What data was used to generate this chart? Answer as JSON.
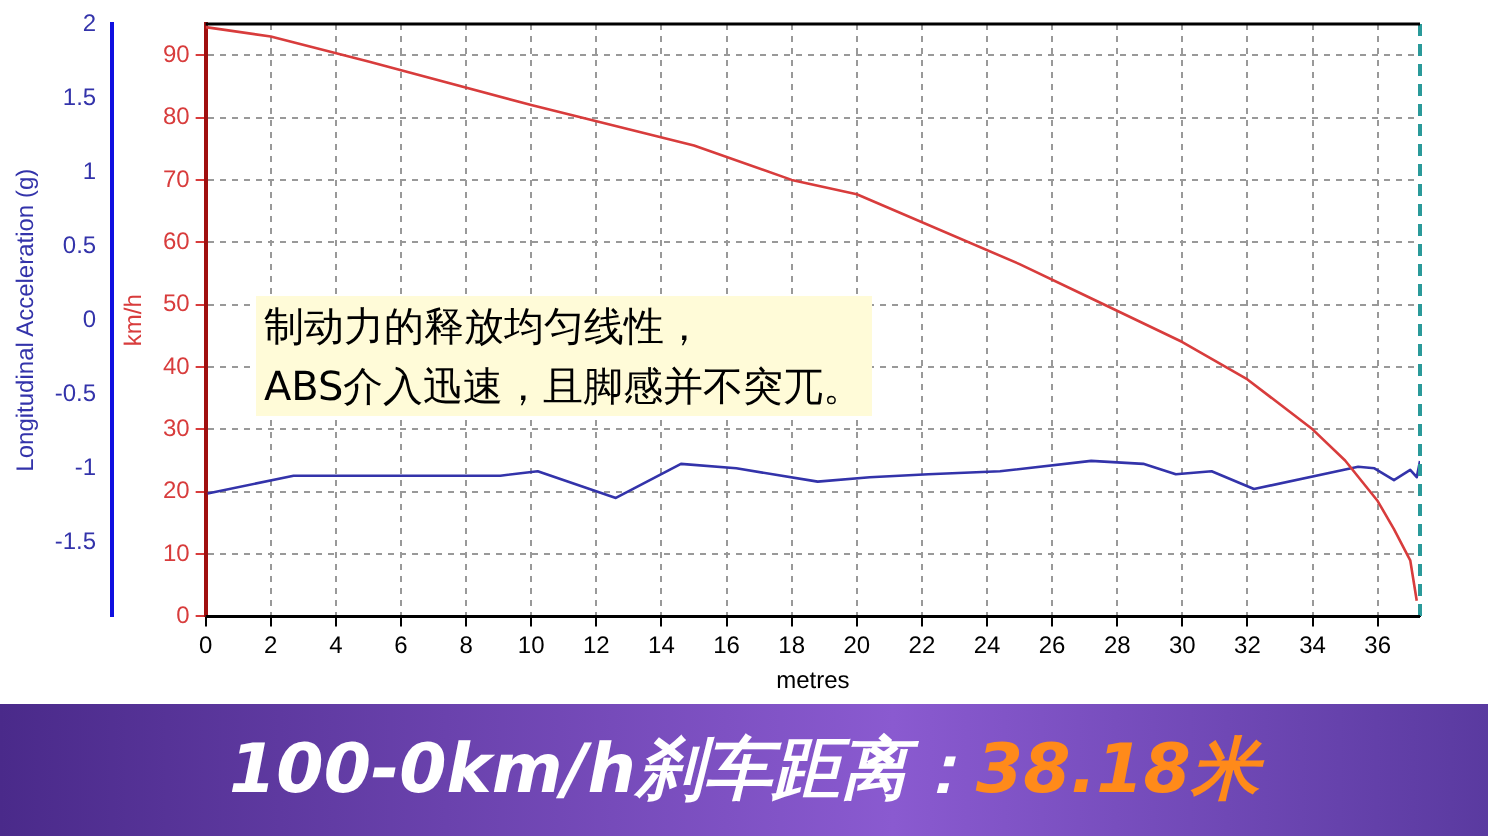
{
  "chart_data": {
    "type": "line",
    "xlabel": "metres",
    "ylabel": "km/h",
    "y2label": "Longitudinal Acceleration (g)",
    "annotations": [
      "制动力的释放均匀线性，\nABS介入迅速，且脚感并不突兀。",
      "100-0km/h刹车距离：",
      "38.18米"
    ],
    "xlim": [
      0,
      37.3
    ],
    "xticks": [
      0,
      2,
      4,
      6,
      8,
      10,
      12,
      14,
      16,
      18,
      20,
      22,
      24,
      26,
      28,
      30,
      32,
      34,
      36
    ],
    "ylim": [
      0,
      95
    ],
    "yticks": [
      0,
      10,
      20,
      30,
      40,
      50,
      60,
      70,
      80,
      90
    ],
    "y2lim": [
      -2,
      2
    ],
    "y2ticks": [
      -1.5,
      -1,
      -0.5,
      0,
      0.5,
      1,
      1.5,
      2
    ],
    "grid": true,
    "marker": "none",
    "line_style": "solid",
    "ref_lines": [
      {
        "axis": "x",
        "value": 37.3,
        "color": "#2a9a9a",
        "line_style": "dashed"
      }
    ],
    "series": [
      {
        "color": "#d83c3c",
        "x": [
          0,
          2,
          5,
          10,
          15,
          18,
          20,
          25,
          27,
          30,
          32,
          34,
          35,
          36,
          36.5,
          37,
          37.2
        ],
        "values": [
          94.5,
          93,
          89,
          82,
          75.5,
          70,
          67.7,
          56.5,
          51.5,
          44,
          38,
          30,
          25,
          18.5,
          14,
          9,
          2.5
        ]
      },
      {
        "color": "#3333aa",
        "axis": "y2",
        "x": [
          0.06,
          2.7,
          9.05,
          10.2,
          12.6,
          14.6,
          16.3,
          18.8,
          20.4,
          22.2,
          24.4,
          27.2,
          28.8,
          29.8,
          30.9,
          32.2,
          35.4,
          35.9,
          36.5,
          37.0,
          37.2,
          37.3
        ],
        "values": [
          -1.17,
          -1.05,
          -1.05,
          -1.02,
          -1.2,
          -0.97,
          -1.0,
          -1.09,
          -1.06,
          -1.04,
          -1.02,
          -0.95,
          -0.97,
          -1.04,
          -1.02,
          -1.14,
          -0.99,
          -1.0,
          -1.08,
          -1.01,
          -1.06,
          -0.95
        ]
      }
    ]
  }
}
